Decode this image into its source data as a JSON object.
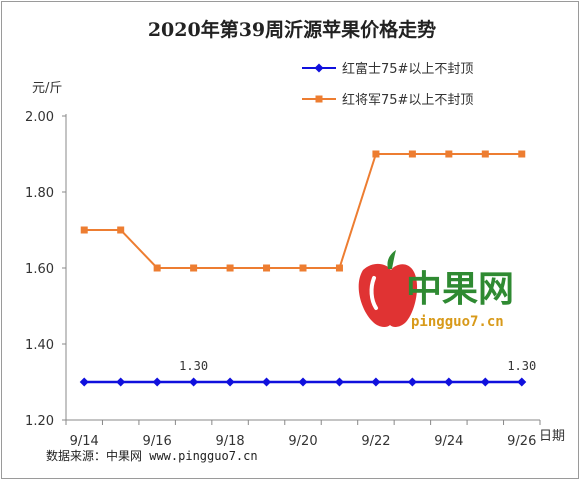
{
  "chart_data": {
    "type": "line",
    "title": "2020年第39周沂源苹果价格走势",
    "ylabel": "元/斤",
    "xlabel": "日期",
    "ylim": [
      1.2,
      2.0
    ],
    "y_ticks": [
      "1.20",
      "1.40",
      "1.60",
      "1.80",
      "2.00"
    ],
    "x_tick_labels": [
      "9/14",
      "9/16",
      "9/18",
      "9/20",
      "9/22",
      "9/24",
      "9/26"
    ],
    "grid": false,
    "legend_position": "top-right",
    "series": [
      {
        "name": "红富士75#以上不封顶",
        "color": "#1010dd",
        "marker": "diamond",
        "values": [
          1.3,
          1.3,
          1.3,
          1.3,
          1.3,
          1.3,
          1.3,
          1.3,
          1.3,
          1.3,
          1.3,
          1.3,
          1.3
        ]
      },
      {
        "name": "红将军75#以上不封顶",
        "color": "#ed7d31",
        "marker": "square",
        "values": [
          1.7,
          1.7,
          1.6,
          1.6,
          1.6,
          1.6,
          1.6,
          1.6,
          1.9,
          1.9,
          1.9,
          1.9,
          1.9
        ]
      }
    ],
    "annotations": [
      {
        "text": "1.30",
        "series": 0,
        "point": 3
      },
      {
        "text": "1.30",
        "series": 0,
        "point": 12
      }
    ]
  },
  "source": "数据来源：中果网 www.pingguo7.cn",
  "watermark": {
    "name": "中果网",
    "url": "pingguo7.cn",
    "icon": "apple-logo-icon"
  }
}
